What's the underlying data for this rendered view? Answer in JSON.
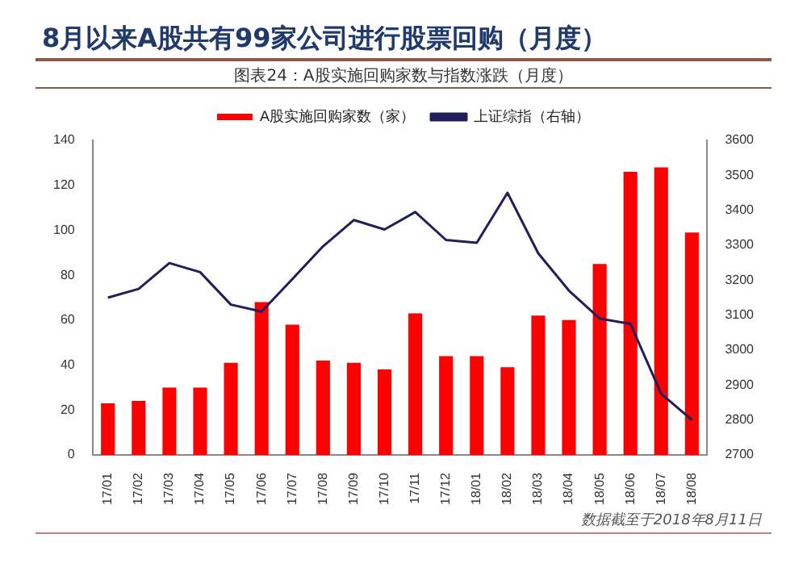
{
  "chart_data": {
    "type": "bar",
    "title": "8月以来A股共有99家公司进行股票回购（月度）",
    "subtitle": "图表24：A股实施回购家数与指数涨跌（月度）",
    "categories": [
      "17/01",
      "17/02",
      "17/03",
      "17/04",
      "17/05",
      "17/06",
      "17/07",
      "17/08",
      "17/09",
      "17/10",
      "17/11",
      "17/12",
      "18/01",
      "18/02",
      "18/03",
      "18/04",
      "18/05",
      "18/06",
      "18/07",
      "18/08"
    ],
    "series": [
      {
        "name": "A股实施回购家数（家）",
        "color": "#ff0000",
        "values": [
          23,
          24,
          30,
          30,
          41,
          68,
          58,
          42,
          41,
          38,
          63,
          44,
          44,
          39,
          62,
          60,
          85,
          126,
          128,
          99
        ]
      },
      {
        "name": "上证综指（右轴）",
        "type": "line",
        "axis": "y2",
        "color": "#1f1f5c",
        "values": [
          3150,
          3175,
          3249,
          3223,
          3130,
          3110,
          3203,
          3297,
          3372,
          3345,
          3395,
          3315,
          3307,
          3450,
          3277,
          3170,
          3090,
          3075,
          2875,
          2800
        ]
      }
    ],
    "ylim": [
      0,
      140
    ],
    "yticks": [
      0,
      20,
      40,
      60,
      80,
      100,
      120,
      140
    ],
    "y2lim": [
      2700,
      3600
    ],
    "y2ticks": [
      2700,
      2800,
      2900,
      3000,
      3100,
      3200,
      3300,
      3400,
      3500,
      3600
    ],
    "grid": false,
    "legend": "top",
    "marker": "none",
    "line_style": "solid",
    "annotations": [
      "数据截至于2018年8月11日"
    ]
  }
}
